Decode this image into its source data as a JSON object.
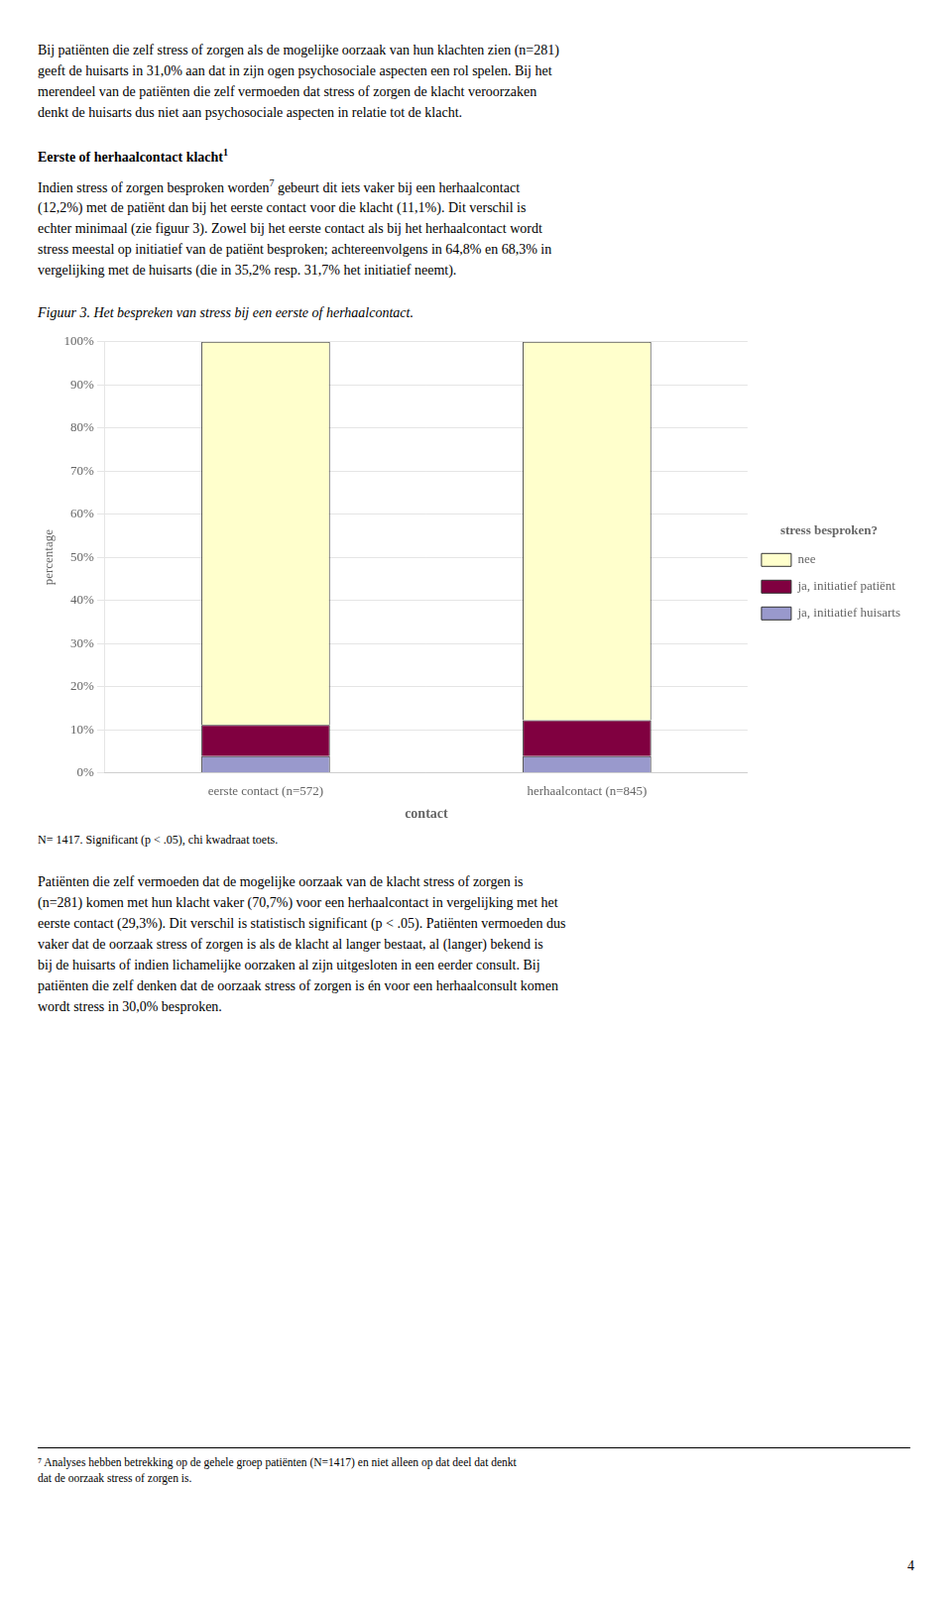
{
  "chart_data": {
    "type": "bar",
    "stacked": true,
    "title": "Figuur 3. Het bespreken van stress bij een eerste of herhaalcontact.",
    "x_label": "contact",
    "y_label": "percentage",
    "categories": [
      "eerste contact (n=572)",
      "herhaalcontact (n=845)"
    ],
    "series": [
      {
        "name": "ja, initiatief huisarts",
        "color": "#9999CC",
        "values": [
          3.9,
          3.9
        ]
      },
      {
        "name": "ja, initiatief patiënt",
        "color": "#800040",
        "values": [
          7.2,
          8.3
        ]
      },
      {
        "name": "nee",
        "color": "#FFFFCC",
        "values": [
          88.9,
          87.8
        ]
      }
    ],
    "legend": "right",
    "legend_title": "stress besproken?",
    "ylim": [
      0,
      100
    ],
    "yticks": [
      {
        "value": 0,
        "label": "0%"
      },
      {
        "value": 10,
        "label": "10%"
      },
      {
        "value": 20,
        "label": "20%"
      },
      {
        "value": 30,
        "label": "30%"
      },
      {
        "value": 40,
        "label": "40%"
      },
      {
        "value": 50,
        "label": "50%"
      },
      {
        "value": 60,
        "label": "60%"
      },
      {
        "value": 70,
        "label": "70%"
      },
      {
        "value": 80,
        "label": "80%"
      },
      {
        "value": 90,
        "label": "90%"
      },
      {
        "value": 100,
        "label": "100%"
      }
    ],
    "grid": true,
    "annotations": [
      {
        "text": "Bij patiënten die zelf stress of zorgen als de mogelijke oorzaak van hun klachten zien (n=281)\ngeeft de huisarts in 31,0% aan dat in zijn ogen psychosociale aspecten een rol spelen. Bij het\nmerendeel van de patiënten die zelf vermoeden dat stress of zorgen de klacht veroorzaken\ndenkt de huisarts dus niet aan psychosociale aspecten in relatie tot de klacht."
      },
      {
        "text": "Eerste of herhaalcontact klacht",
        "sup": "1"
      },
      {
        "text": "Indien stress of zorgen besproken worden",
        "sup": "7",
        "after": " gebeurt dit iets vaker bij een herhaalcontact\n(12,2%) met de patiënt dan bij het eerste contact voor die klacht (11,1%). Dit verschil is\nechter minimaal (zie figuur 3). Zowel bij het eerste contact als bij het herhaalcontact wordt\nstress meestal op initiatief van de patiënt besproken; achtereenvolgens in 64,8% en 68,3% in\nvergelijking met de huisarts (die in 35,2% resp. 31,7% het initiatief neemt)."
      },
      {
        "text": "N= 1417. Significant (p < .05), chi kwadraat toets."
      },
      {
        "text": "Patiënten die zelf vermoeden dat de mogelijke oorzaak van de klacht stress of zorgen is\n(n=281) komen met hun klacht vaker (70,7%) voor een herhaalcontact in vergelijking met het\neerste contact (29,3%). Dit verschil is statistisch significant (p < .05). Patiënten vermoeden dus\nvaker dat de oorzaak stress of zorgen is als de klacht al langer bestaat, al (langer) bekend is\nbij de huisarts of indien lichamelijke oorzaken al zijn uitgesloten in een eerder consult. Bij\npatiënten die zelf denken dat de oorzaak stress of zorgen is én voor een herhaalconsult komen\nwordt stress in 30,0% besproken."
      },
      {
        "text": "⁷ Analyses hebben betrekking op de gehele groep patiënten (N=1417) en niet alleen op dat deel dat denkt\ndat de oorzaak stress of zorgen is."
      },
      {
        "text": "4"
      }
    ]
  }
}
